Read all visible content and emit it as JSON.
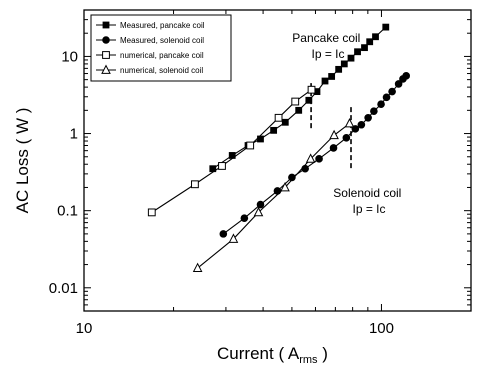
{
  "chart_data": {
    "type": "line",
    "xlabel": "Current ( A",
    "xlabel_sub": "rms",
    "xlabel_tail": " )",
    "ylabel": "AC Loss ( W )",
    "x_scale": "log",
    "y_scale": "log",
    "xlim": [
      10,
      200
    ],
    "ylim": [
      0.005,
      40
    ],
    "x_ticks": [
      10,
      100
    ],
    "x_tick_labels": [
      "10",
      "100"
    ],
    "y_ticks": [
      0.01,
      0.1,
      1,
      10
    ],
    "y_tick_labels": [
      "0.01",
      "0.1",
      "1",
      "10"
    ],
    "grid": false,
    "legend_position": "top-left",
    "series": [
      {
        "name": "Measured, pancake coil",
        "marker": "filled-square",
        "points": [
          [
            27.1,
            0.35
          ],
          [
            31.5,
            0.52
          ],
          [
            35.6,
            0.7
          ],
          [
            39.2,
            0.85
          ],
          [
            43.4,
            1.1
          ],
          [
            47.5,
            1.4
          ],
          [
            52.7,
            2.0
          ],
          [
            57.0,
            2.7
          ],
          [
            60.7,
            3.5
          ],
          [
            64.6,
            4.8
          ],
          [
            68.0,
            5.5
          ],
          [
            71.8,
            6.8
          ],
          [
            75.0,
            8.0
          ],
          [
            79.0,
            9.5
          ],
          [
            83.1,
            11.5
          ],
          [
            87.7,
            13.0
          ],
          [
            91.3,
            15.5
          ],
          [
            95.5,
            18.0
          ],
          [
            103.4,
            24.0
          ]
        ]
      },
      {
        "name": "Measured, solenoid coil",
        "marker": "filled-circle",
        "points": [
          [
            29.4,
            0.05
          ],
          [
            34.6,
            0.08
          ],
          [
            39.2,
            0.12
          ],
          [
            44.7,
            0.18
          ],
          [
            50.0,
            0.27
          ],
          [
            55.4,
            0.35
          ],
          [
            61.7,
            0.47
          ],
          [
            69.0,
            0.65
          ],
          [
            76.2,
            0.88
          ],
          [
            81.7,
            1.15
          ],
          [
            85.6,
            1.3
          ],
          [
            90.2,
            1.6
          ],
          [
            94.3,
            1.95
          ],
          [
            99.7,
            2.4
          ],
          [
            104.0,
            2.95
          ],
          [
            108.6,
            3.5
          ],
          [
            114.2,
            4.4
          ],
          [
            118.1,
            5.1
          ],
          [
            121.1,
            5.6
          ]
        ]
      },
      {
        "name": "numerical, pancake coil",
        "marker": "open-square",
        "points": [
          [
            16.9,
            0.095
          ],
          [
            23.6,
            0.22
          ],
          [
            29.1,
            0.38
          ],
          [
            36.2,
            0.7
          ],
          [
            45.1,
            1.6
          ],
          [
            51.3,
            2.6
          ],
          [
            58.2,
            3.7
          ]
        ]
      },
      {
        "name": "numerical, solenoid coil",
        "marker": "open-triangle",
        "points": [
          [
            24.1,
            0.018
          ],
          [
            31.8,
            0.043
          ],
          [
            38.6,
            0.095
          ],
          [
            47.4,
            0.2
          ],
          [
            57.8,
            0.47
          ],
          [
            69.3,
            0.95
          ],
          [
            78.1,
            1.35
          ]
        ]
      }
    ],
    "annotations": [
      {
        "id": "pancake",
        "lines": [
          "Pancake coil",
          "Ip = Ic"
        ],
        "marker_x": 58,
        "marker_y_range": [
          1.1,
          4.5
        ]
      },
      {
        "id": "solenoid",
        "lines": [
          "Solenoid coil",
          "Ip = Ic"
        ],
        "marker_x": 79,
        "marker_y_range": [
          0.35,
          2.2
        ]
      }
    ]
  }
}
